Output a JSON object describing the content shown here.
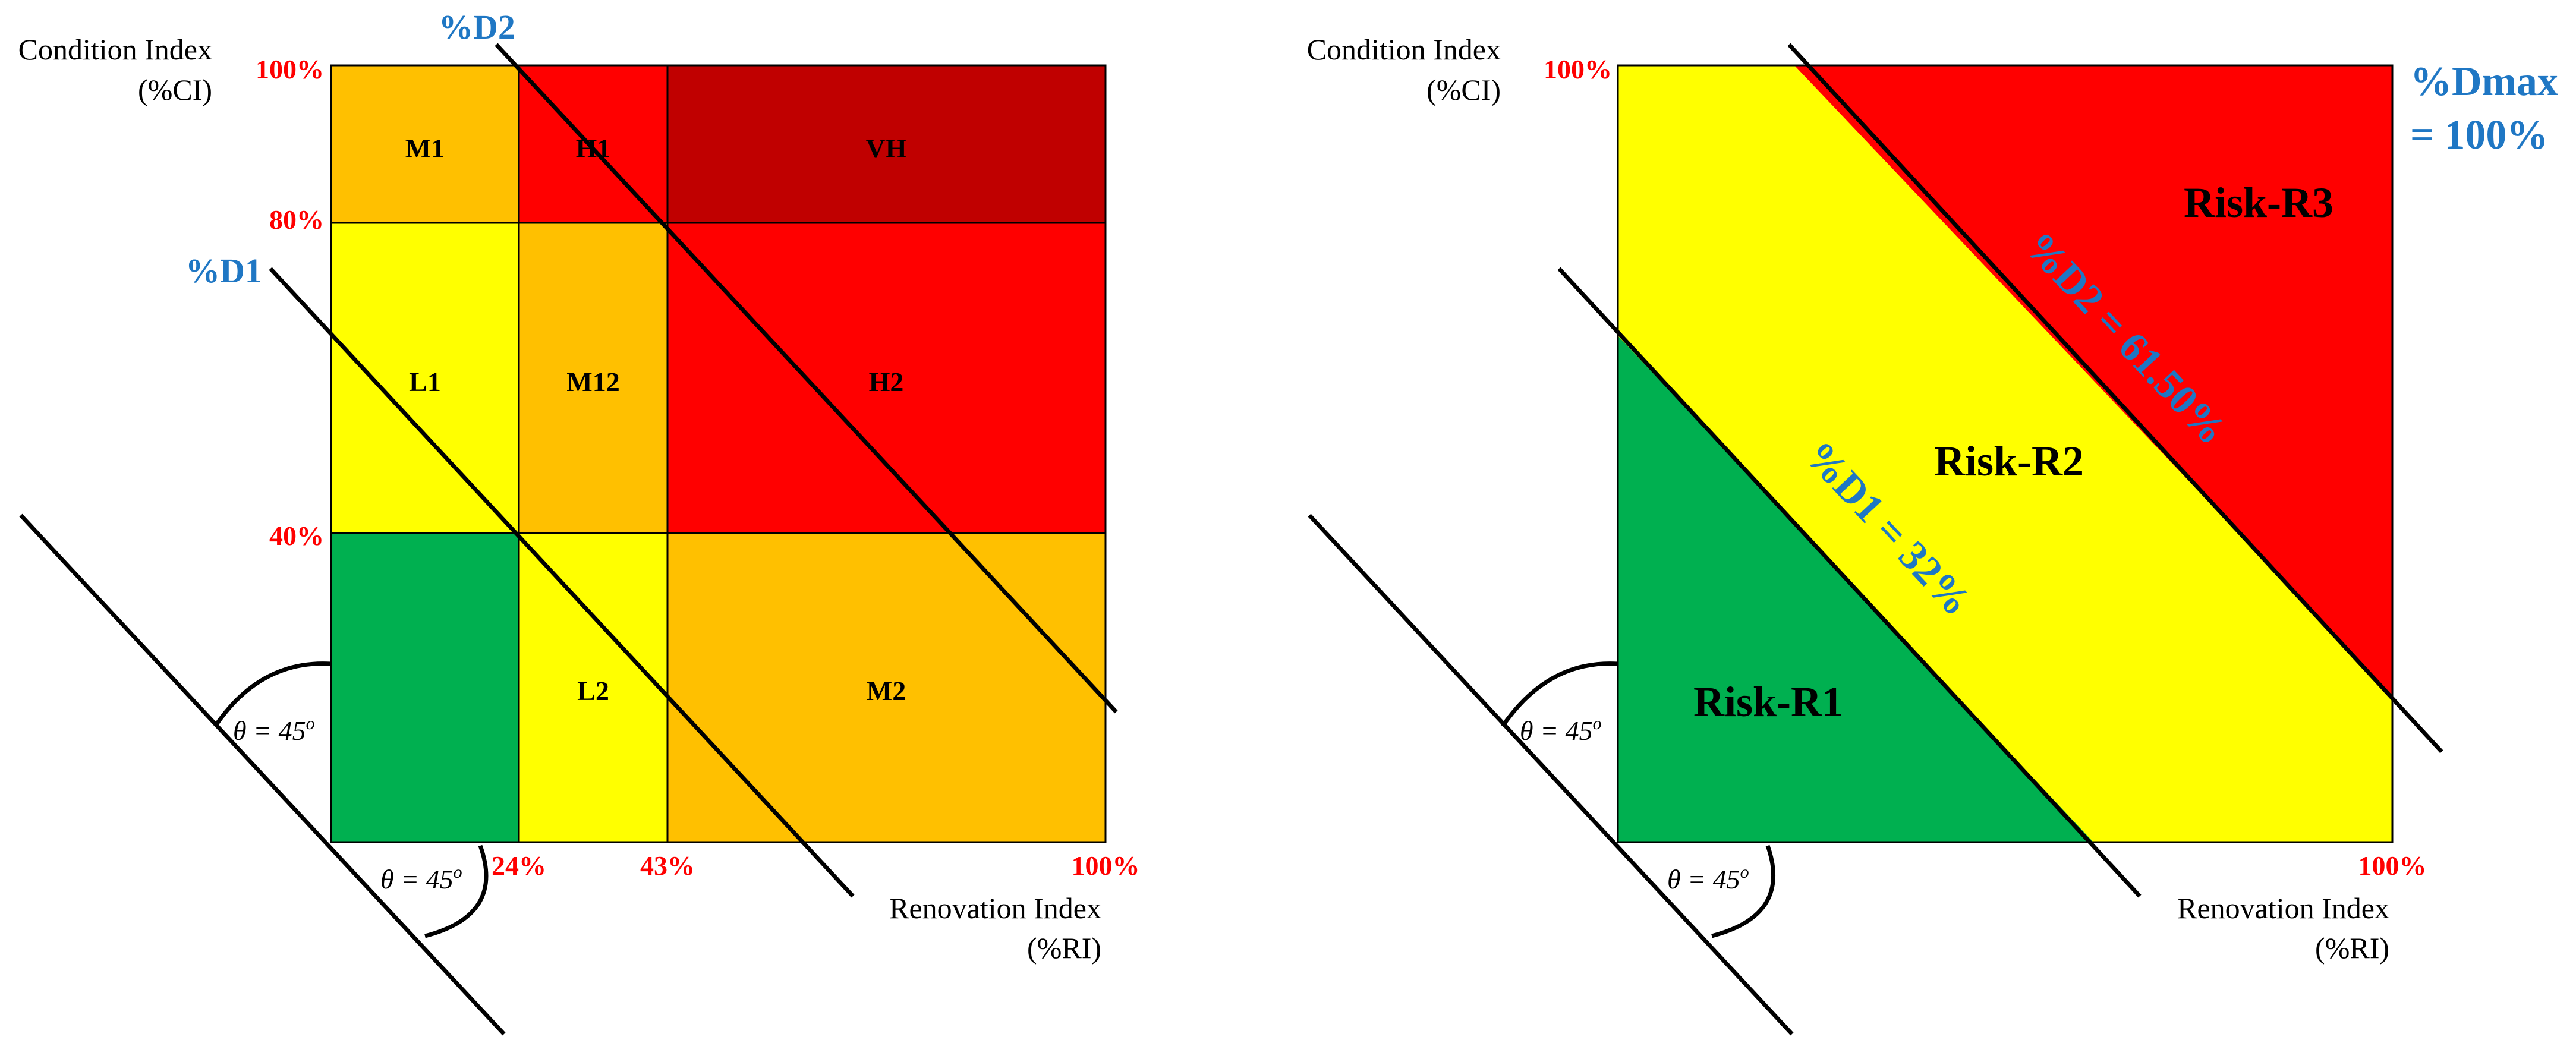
{
  "colors": {
    "green": "#00b050",
    "yellow": "#ffff00",
    "orange": "#ffc000",
    "red": "#ff0000",
    "dark_red": "#c00000",
    "tick_red": "#ff0000",
    "label_blue": "#1f77c4"
  },
  "left_matrix": {
    "y_axis_title_line1": "Condition Index",
    "y_axis_title_line2": "(%CI)",
    "x_axis_title_line1": "Renovation Index",
    "x_axis_title_line2": "(%RI)",
    "y_ticks": [
      "100%",
      "80%",
      "40%"
    ],
    "x_ticks": [
      "24%",
      "43%",
      "100%"
    ],
    "cells": [
      {
        "label": "M1",
        "color": "orange"
      },
      {
        "label": "H1",
        "color": "red"
      },
      {
        "label": "VH",
        "color": "dark_red"
      },
      {
        "label": "L1",
        "color": "yellow"
      },
      {
        "label": "M12",
        "color": "orange"
      },
      {
        "label": "H2",
        "color": "red"
      },
      {
        "label": "",
        "color": "green"
      },
      {
        "label": "L2",
        "color": "yellow"
      },
      {
        "label": "M2",
        "color": "orange"
      }
    ],
    "line_d1_label": "%D1",
    "line_d2_label": "%D2",
    "theta_text": "θ = 45",
    "theta_sup": "o"
  },
  "right_matrix": {
    "y_axis_title_line1": "Condition Index",
    "y_axis_title_line2": "(%CI)",
    "x_axis_title_line1": "Renovation Index",
    "x_axis_title_line2": "(%RI)",
    "y_tick": "100%",
    "x_tick": "100%",
    "dmax_line1": "%Dmax",
    "dmax_line2": "= 100%",
    "d1_label": "%D1 = 32%",
    "d2_label": "%D2 = 61.50%",
    "risk_r1": "Risk-R1",
    "risk_r2": "Risk-R2",
    "risk_r3": "Risk-R3",
    "theta_text": "θ = 45",
    "theta_sup": "o"
  }
}
